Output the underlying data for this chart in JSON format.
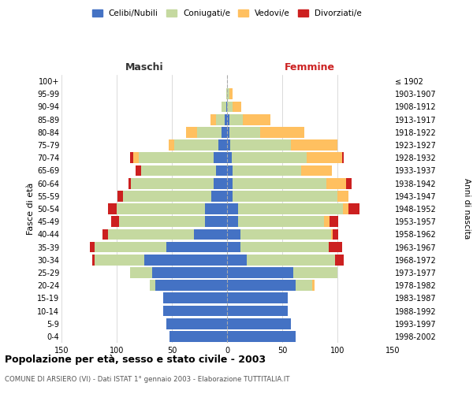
{
  "age_groups": [
    "0-4",
    "5-9",
    "10-14",
    "15-19",
    "20-24",
    "25-29",
    "30-34",
    "35-39",
    "40-44",
    "45-49",
    "50-54",
    "55-59",
    "60-64",
    "65-69",
    "70-74",
    "75-79",
    "80-84",
    "85-89",
    "90-94",
    "95-99",
    "100+"
  ],
  "birth_years": [
    "1998-2002",
    "1993-1997",
    "1988-1992",
    "1983-1987",
    "1978-1982",
    "1973-1977",
    "1968-1972",
    "1963-1967",
    "1958-1962",
    "1953-1957",
    "1948-1952",
    "1943-1947",
    "1938-1942",
    "1933-1937",
    "1928-1932",
    "1923-1927",
    "1918-1922",
    "1913-1917",
    "1908-1912",
    "1903-1907",
    "≤ 1902"
  ],
  "colors": {
    "celibe": "#4472c4",
    "coniugato": "#c5d9a0",
    "vedovo": "#ffc060",
    "divorziato": "#cc2020"
  },
  "maschi": {
    "celibe": [
      52,
      55,
      58,
      58,
      65,
      68,
      75,
      55,
      30,
      20,
      20,
      14,
      12,
      10,
      12,
      8,
      5,
      2,
      1,
      0,
      0
    ],
    "coniugato": [
      0,
      0,
      0,
      0,
      5,
      20,
      45,
      65,
      78,
      78,
      80,
      80,
      75,
      68,
      68,
      40,
      22,
      8,
      4,
      1,
      0
    ],
    "vedovo": [
      0,
      0,
      0,
      0,
      0,
      0,
      0,
      0,
      0,
      0,
      0,
      0,
      0,
      0,
      5,
      5,
      10,
      5,
      0,
      0,
      0
    ],
    "divorziato": [
      0,
      0,
      0,
      0,
      0,
      0,
      2,
      4,
      5,
      7,
      8,
      5,
      2,
      5,
      3,
      0,
      0,
      0,
      0,
      0,
      0
    ]
  },
  "femmine": {
    "nubile": [
      62,
      58,
      55,
      55,
      62,
      60,
      18,
      12,
      12,
      10,
      10,
      5,
      5,
      5,
      4,
      3,
      2,
      2,
      0,
      0,
      0
    ],
    "coniugata": [
      0,
      0,
      0,
      0,
      15,
      40,
      80,
      80,
      82,
      78,
      95,
      95,
      85,
      62,
      68,
      55,
      28,
      12,
      5,
      2,
      0
    ],
    "vedova": [
      0,
      0,
      0,
      0,
      2,
      0,
      0,
      0,
      2,
      5,
      5,
      10,
      18,
      28,
      32,
      42,
      40,
      25,
      8,
      3,
      0
    ],
    "divorziata": [
      0,
      0,
      0,
      0,
      0,
      0,
      8,
      12,
      5,
      8,
      10,
      0,
      5,
      0,
      2,
      0,
      0,
      0,
      0,
      0,
      0
    ]
  },
  "xlim": 150,
  "title": "Popolazione per età, sesso e stato civile - 2003",
  "subtitle": "COMUNE DI ARSIERO (VI) - Dati ISTAT 1° gennaio 2003 - Elaborazione TUTTITALIA.IT",
  "ylabel_left": "Fasce di età",
  "ylabel_right": "Anni di nascita",
  "xlabel_left": "Maschi",
  "xlabel_right": "Femmine",
  "bg_color": "#ffffff",
  "grid_color": "#cccccc"
}
